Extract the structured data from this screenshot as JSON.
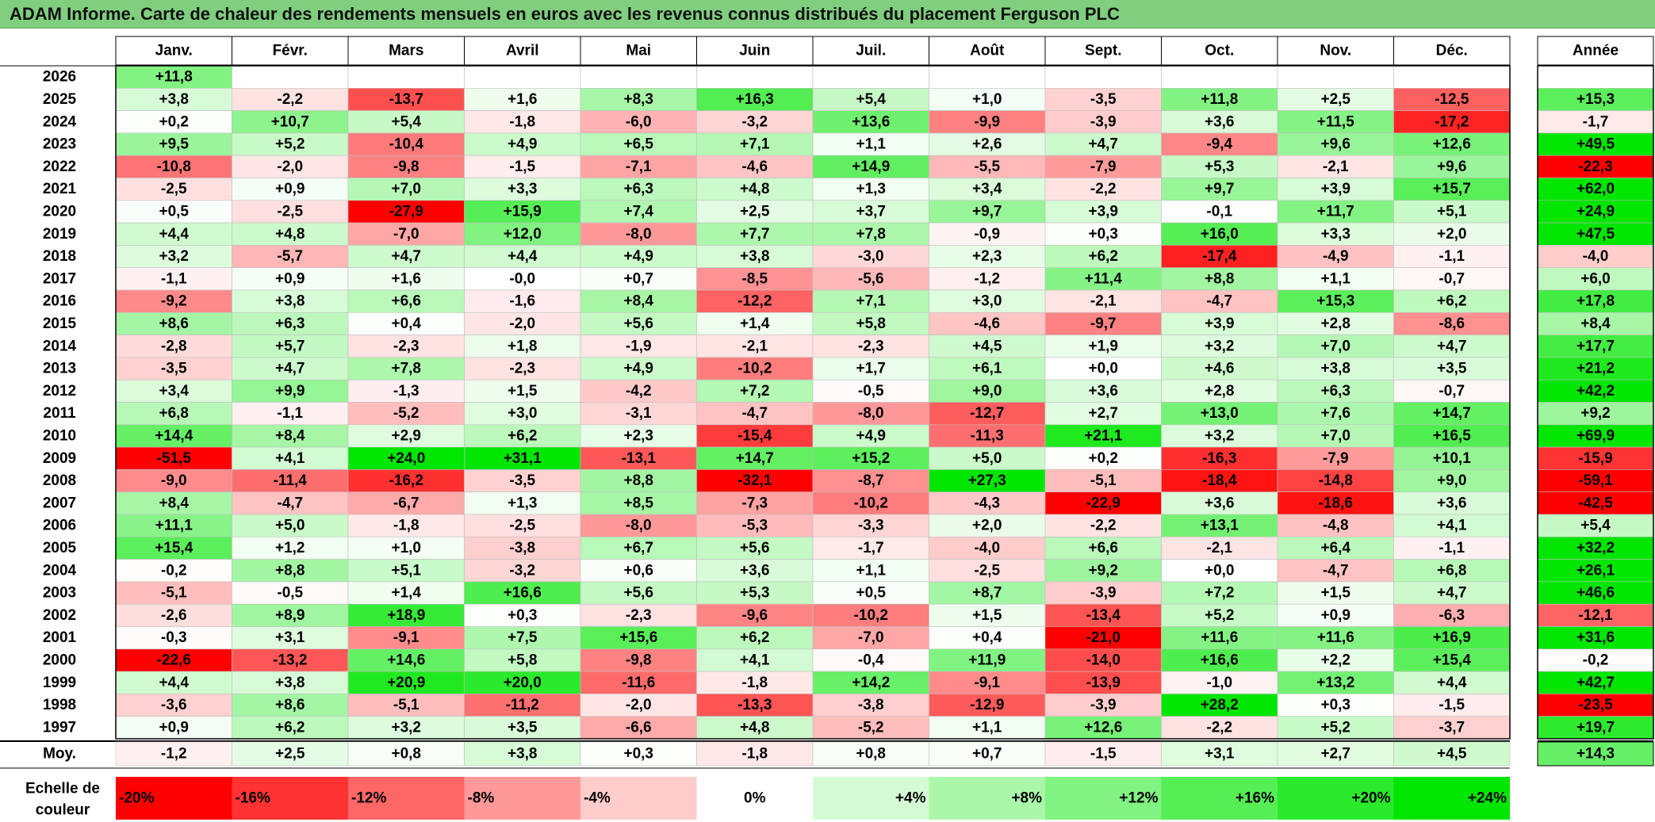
{
  "title": "ADAM Informe. Carte de chaleur des rendements mensuels en euros avec les revenus connus distribués du placement Ferguson PLC",
  "chart_data": {
    "type": "heatmap",
    "title": "ADAM Informe. Carte de chaleur des rendements mensuels en euros avec les revenus connus distribués du placement Ferguson PLC",
    "months": [
      "Janv.",
      "Févr.",
      "Mars",
      "Avril",
      "Mai",
      "Juin",
      "Juil.",
      "Août",
      "Sept.",
      "Oct.",
      "Nov.",
      "Déc."
    ],
    "year_header": "Année",
    "average_label": "Moy.",
    "scale_label": [
      "Echelle de",
      "couleur"
    ],
    "rows": [
      {
        "year": "2026",
        "values": [
          11.8,
          null,
          null,
          null,
          null,
          null,
          null,
          null,
          null,
          null,
          null,
          null
        ],
        "annual": null
      },
      {
        "year": "2025",
        "values": [
          3.8,
          -2.2,
          -13.7,
          1.6,
          8.3,
          16.3,
          5.4,
          1.0,
          -3.5,
          11.8,
          2.5,
          -12.5
        ],
        "annual": 15.3
      },
      {
        "year": "2024",
        "values": [
          0.2,
          10.7,
          5.4,
          -1.8,
          -6.0,
          -3.2,
          13.6,
          -9.9,
          -3.9,
          3.6,
          11.5,
          -17.2
        ],
        "annual": -1.7
      },
      {
        "year": "2023",
        "values": [
          9.5,
          5.2,
          -10.4,
          4.9,
          6.5,
          7.1,
          1.1,
          2.6,
          4.7,
          -9.4,
          9.6,
          12.6
        ],
        "annual": 49.5
      },
      {
        "year": "2022",
        "values": [
          -10.8,
          -2.0,
          -9.8,
          -1.5,
          -7.1,
          -4.6,
          14.9,
          -5.5,
          -7.9,
          5.3,
          -2.1,
          9.6
        ],
        "annual": -22.3
      },
      {
        "year": "2021",
        "values": [
          -2.5,
          0.9,
          7.0,
          3.3,
          6.3,
          4.8,
          1.3,
          3.4,
          -2.2,
          9.7,
          3.9,
          15.7
        ],
        "annual": 62.0
      },
      {
        "year": "2020",
        "values": [
          0.5,
          -2.5,
          -27.9,
          15.9,
          7.4,
          2.5,
          3.7,
          9.7,
          3.9,
          -0.1,
          11.7,
          5.1
        ],
        "annual": 24.9
      },
      {
        "year": "2019",
        "values": [
          4.4,
          4.8,
          -7.0,
          12.0,
          -8.0,
          7.7,
          7.8,
          -0.9,
          0.3,
          16.0,
          3.3,
          2.0
        ],
        "annual": 47.5
      },
      {
        "year": "2018",
        "values": [
          3.2,
          -5.7,
          4.7,
          4.4,
          4.9,
          3.8,
          -3.0,
          2.3,
          6.2,
          -17.4,
          -4.9,
          -1.1
        ],
        "annual": -4.0
      },
      {
        "year": "2017",
        "values": [
          -1.1,
          0.9,
          1.6,
          -0.0,
          0.7,
          -8.5,
          -5.6,
          -1.2,
          11.4,
          8.8,
          1.1,
          -0.7
        ],
        "annual": 6.0
      },
      {
        "year": "2016",
        "values": [
          -9.2,
          3.8,
          6.6,
          -1.6,
          8.4,
          -12.2,
          7.1,
          3.0,
          -2.1,
          -4.7,
          15.3,
          6.2
        ],
        "annual": 17.8
      },
      {
        "year": "2015",
        "values": [
          8.6,
          6.3,
          0.4,
          -2.0,
          5.6,
          1.4,
          5.8,
          -4.6,
          -9.7,
          3.9,
          2.8,
          -8.6
        ],
        "annual": 8.4
      },
      {
        "year": "2014",
        "values": [
          -2.8,
          5.7,
          -2.3,
          1.8,
          -1.9,
          -2.1,
          -2.3,
          4.5,
          1.9,
          3.2,
          7.0,
          4.7
        ],
        "annual": 17.7
      },
      {
        "year": "2013",
        "values": [
          -3.5,
          4.7,
          7.8,
          -2.3,
          4.9,
          -10.2,
          1.7,
          6.1,
          0.0,
          4.6,
          3.8,
          3.5
        ],
        "annual": 21.2
      },
      {
        "year": "2012",
        "values": [
          3.4,
          9.9,
          -1.3,
          1.5,
          -4.2,
          7.2,
          -0.5,
          9.0,
          3.6,
          2.8,
          6.3,
          -0.7
        ],
        "annual": 42.2
      },
      {
        "year": "2011",
        "values": [
          6.8,
          -1.1,
          -5.2,
          3.0,
          -3.1,
          -4.7,
          -8.0,
          -12.7,
          2.7,
          13.0,
          7.6,
          14.7
        ],
        "annual": 9.2
      },
      {
        "year": "2010",
        "values": [
          14.4,
          8.4,
          2.9,
          6.2,
          2.3,
          -15.4,
          4.9,
          -11.3,
          21.1,
          3.2,
          7.0,
          16.5
        ],
        "annual": 69.9
      },
      {
        "year": "2009",
        "values": [
          -51.5,
          4.1,
          24.0,
          31.1,
          -13.1,
          14.7,
          15.2,
          5.0,
          0.2,
          -16.3,
          -7.9,
          10.1
        ],
        "annual": -15.9
      },
      {
        "year": "2008",
        "values": [
          -9.0,
          -11.4,
          -16.2,
          -3.5,
          8.8,
          -32.1,
          -8.7,
          27.3,
          -5.1,
          -18.4,
          -14.8,
          9.0
        ],
        "annual": -59.1
      },
      {
        "year": "2007",
        "values": [
          8.4,
          -4.7,
          -6.7,
          1.3,
          8.5,
          -7.3,
          -10.2,
          -4.3,
          -22.9,
          3.6,
          -18.6,
          3.6
        ],
        "annual": -42.5
      },
      {
        "year": "2006",
        "values": [
          11.1,
          5.0,
          -1.8,
          -2.5,
          -8.0,
          -5.3,
          -3.3,
          2.0,
          -2.2,
          13.1,
          -4.8,
          4.1
        ],
        "annual": 5.4
      },
      {
        "year": "2005",
        "values": [
          15.4,
          1.2,
          1.0,
          -3.8,
          6.7,
          5.6,
          -1.7,
          -4.0,
          6.6,
          -2.1,
          6.4,
          -1.1
        ],
        "annual": 32.2
      },
      {
        "year": "2004",
        "values": [
          -0.2,
          8.8,
          5.1,
          -3.2,
          0.6,
          3.6,
          1.1,
          -2.5,
          9.2,
          0.0,
          -4.7,
          6.8
        ],
        "annual": 26.1
      },
      {
        "year": "2003",
        "values": [
          -5.1,
          -0.5,
          1.4,
          16.6,
          5.6,
          5.3,
          0.5,
          8.7,
          -3.9,
          7.2,
          1.5,
          4.7
        ],
        "annual": 46.6
      },
      {
        "year": "2002",
        "values": [
          -2.6,
          8.9,
          18.9,
          0.3,
          -2.3,
          -9.6,
          -10.2,
          1.5,
          -13.4,
          5.2,
          0.9,
          -6.3
        ],
        "annual": -12.1
      },
      {
        "year": "2001",
        "values": [
          -0.3,
          3.1,
          -9.1,
          7.5,
          15.6,
          6.2,
          -7.0,
          0.4,
          -21.0,
          11.6,
          11.6,
          16.9
        ],
        "annual": 31.6
      },
      {
        "year": "2000",
        "values": [
          -22.6,
          -13.2,
          14.6,
          5.8,
          -9.8,
          4.1,
          -0.4,
          11.9,
          -14.0,
          16.6,
          2.2,
          15.4
        ],
        "annual": -0.2
      },
      {
        "year": "1999",
        "values": [
          4.4,
          3.8,
          20.9,
          20.0,
          -11.6,
          -1.8,
          14.2,
          -9.1,
          -13.9,
          -1.0,
          13.2,
          4.4
        ],
        "annual": 42.7
      },
      {
        "year": "1998",
        "values": [
          -3.6,
          8.6,
          -5.1,
          -11.2,
          -2.0,
          -13.3,
          -3.8,
          -12.9,
          -3.9,
          28.2,
          0.3,
          -1.5
        ],
        "annual": -23.5
      },
      {
        "year": "1997",
        "values": [
          0.9,
          6.2,
          3.2,
          3.5,
          -6.6,
          4.8,
          -5.2,
          1.1,
          12.6,
          -2.2,
          5.2,
          -3.7
        ],
        "annual": 19.7
      }
    ],
    "averages": [
      -1.2,
      2.5,
      0.8,
      3.8,
      0.3,
      -1.8,
      0.8,
      0.7,
      -1.5,
      3.1,
      2.7,
      4.5
    ],
    "annual_average": 14.3,
    "scale": [
      {
        "label": "-20%",
        "value": -20
      },
      {
        "label": "-16%",
        "value": -16
      },
      {
        "label": "-12%",
        "value": -12
      },
      {
        "label": "-8%",
        "value": -8
      },
      {
        "label": "-4%",
        "value": -4
      },
      {
        "label": "0%",
        "value": 0
      },
      {
        "label": "+4%",
        "value": 4
      },
      {
        "label": "+8%",
        "value": 8
      },
      {
        "label": "+12%",
        "value": 12
      },
      {
        "label": "+16%",
        "value": 16
      },
      {
        "label": "+20%",
        "value": 20
      },
      {
        "label": "+24%",
        "value": 24
      }
    ]
  }
}
